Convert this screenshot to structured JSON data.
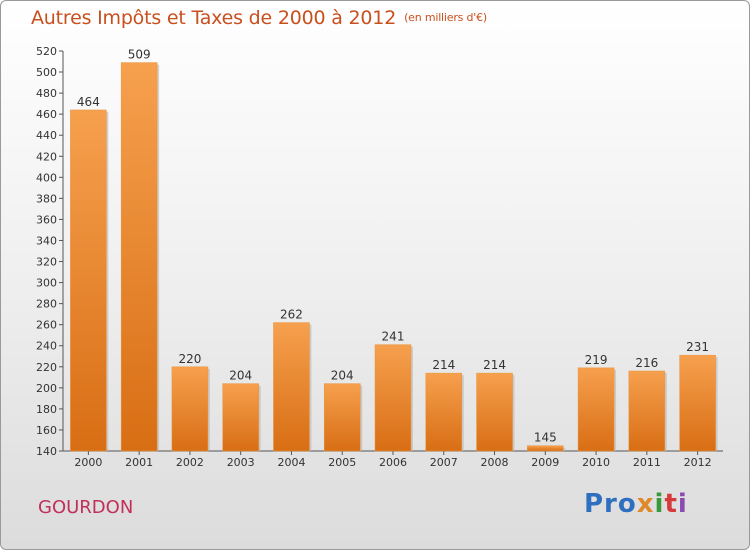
{
  "chart_data": {
    "type": "bar",
    "title": "Autres Impôts et Taxes de 2000 à 2012",
    "subtitle": "(en milliers d'€)",
    "categories": [
      "2000",
      "2001",
      "2002",
      "2003",
      "2004",
      "2005",
      "2006",
      "2007",
      "2008",
      "2009",
      "2010",
      "2011",
      "2012"
    ],
    "values": [
      464,
      509,
      220,
      204,
      262,
      204,
      241,
      214,
      214,
      145,
      219,
      216,
      231
    ],
    "ylim": [
      140,
      520
    ],
    "yticks": [
      140,
      160,
      180,
      200,
      220,
      240,
      260,
      280,
      300,
      320,
      340,
      360,
      380,
      400,
      420,
      440,
      460,
      480,
      500,
      520
    ],
    "grid": false,
    "bar_color": "#e67e22"
  },
  "commune": "GOURDON",
  "logo": {
    "part1": "Pro",
    "part2": "x",
    "part3": "i",
    "part4": "t",
    "part5": "i"
  }
}
